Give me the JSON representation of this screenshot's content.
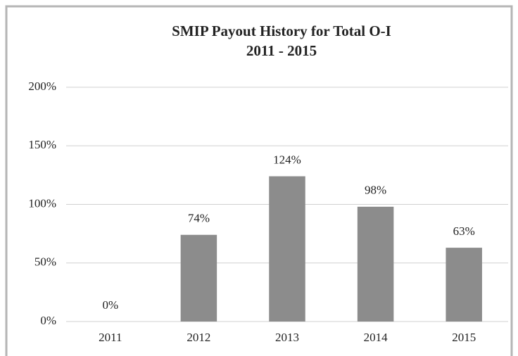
{
  "chart_data": {
    "type": "bar",
    "title": "SMIP Payout History for Total O-I",
    "subtitle": "2011 - 2015",
    "categories": [
      "2011",
      "2012",
      "2013",
      "2014",
      "2015"
    ],
    "values": [
      0,
      74,
      124,
      98,
      63
    ],
    "value_labels": [
      "0%",
      "74%",
      "124%",
      "98%",
      "63%"
    ],
    "color": "#8c8c8c",
    "ylim": [
      0,
      200
    ],
    "yticks": [
      {
        "value": 0,
        "label": "0%"
      },
      {
        "value": 50,
        "label": "50%"
      },
      {
        "value": 100,
        "label": "100%"
      },
      {
        "value": 150,
        "label": "150%"
      },
      {
        "value": 200,
        "label": "200%"
      }
    ],
    "grid": true
  }
}
